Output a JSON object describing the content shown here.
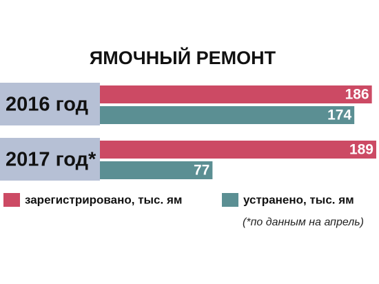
{
  "chart_data": {
    "type": "bar",
    "orientation": "horizontal",
    "title": "ЯМОЧНЫЙ РЕМОНТ",
    "categories": [
      "2016 год",
      "2017 год*"
    ],
    "series": [
      {
        "name": "зарегистрировано, тыс. ям",
        "color": "#cc4a64",
        "values": [
          186,
          189
        ]
      },
      {
        "name": "устранено, тыс. ям",
        "color": "#5b8f93",
        "values": [
          174,
          77
        ]
      }
    ],
    "note": "(*по данным на апрель)",
    "category_box_color": "#b6c0d5"
  }
}
